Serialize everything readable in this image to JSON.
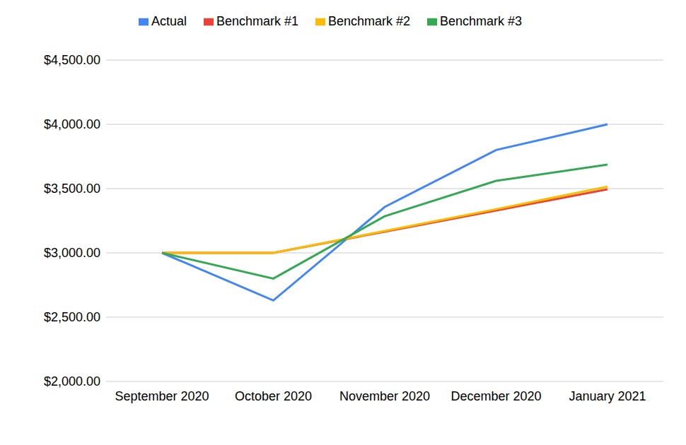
{
  "chart_data": {
    "type": "line",
    "categories": [
      "September 2020",
      "October 2020",
      "November 2020",
      "December 2020",
      "January 2021"
    ],
    "series": [
      {
        "name": "Actual",
        "color": "#4285f4",
        "values": [
          3000,
          2630,
          3357,
          3800,
          4000
        ]
      },
      {
        "name": "Benchmark #1",
        "color": "#ea4335",
        "values": [
          3000,
          3000,
          3165,
          3330,
          3495
        ]
      },
      {
        "name": "Benchmark #2",
        "color": "#fbbc04",
        "values": [
          3000,
          3000,
          3170,
          3340,
          3515
        ]
      },
      {
        "name": "Benchmark #3",
        "color": "#34a853",
        "values": [
          3000,
          2800,
          3285,
          3560,
          3687
        ]
      }
    ],
    "ylim": [
      2000,
      4500
    ],
    "yticks": [
      {
        "value": 2000,
        "label": "$2,000.00"
      },
      {
        "value": 2500,
        "label": "$2,500.00"
      },
      {
        "value": 3000,
        "label": "$3,000.00"
      },
      {
        "value": 3500,
        "label": "$3,500.00"
      },
      {
        "value": 4000,
        "label": "$4,000.00"
      },
      {
        "value": 4500,
        "label": "$4,500.00"
      }
    ],
    "grid": true,
    "legend": "top"
  }
}
